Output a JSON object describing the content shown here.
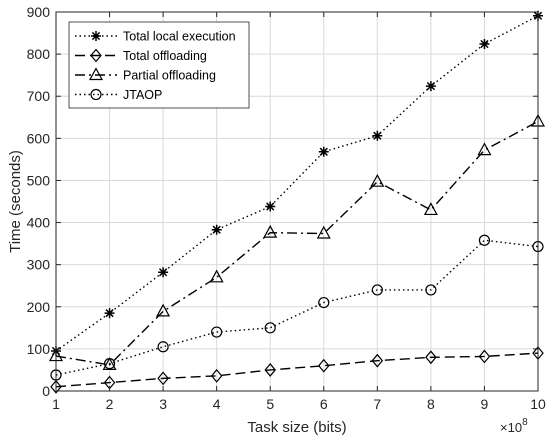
{
  "chart_data": {
    "type": "line",
    "xlabel": "Task size (bits)",
    "ylabel": "Time (seconds)",
    "x_multiplier": {
      "base": "×10",
      "exponent": "8"
    },
    "x": [
      1,
      2,
      3,
      4,
      5,
      6,
      7,
      8,
      9,
      10
    ],
    "xlim": [
      1,
      10
    ],
    "ylim": [
      0,
      900
    ],
    "x_ticks": [
      1,
      2,
      3,
      4,
      5,
      6,
      7,
      8,
      9,
      10
    ],
    "y_ticks": [
      0,
      100,
      200,
      300,
      400,
      500,
      600,
      700,
      800,
      900
    ],
    "grid": true,
    "legend_position": "top-left",
    "series": [
      {
        "name": "Total local execution",
        "marker": "asterisk",
        "line": "dotted",
        "color": "#000000",
        "values": [
          95,
          185,
          282,
          383,
          438,
          568,
          606,
          724,
          824,
          891
        ]
      },
      {
        "name": "Total offloading",
        "marker": "diamond",
        "line": "dashed",
        "color": "#000000",
        "values": [
          10,
          20,
          30,
          36,
          50,
          60,
          72,
          80,
          82,
          90
        ]
      },
      {
        "name": "Partial offloading",
        "marker": "triangle",
        "line": "dashdot",
        "color": "#000000",
        "values": [
          83,
          62,
          189,
          270,
          376,
          374,
          497,
          430,
          572,
          640
        ]
      },
      {
        "name": "JTAOP",
        "marker": "circle",
        "line": "dotted",
        "color": "#000000",
        "values": [
          38,
          65,
          105,
          140,
          150,
          210,
          240,
          240,
          358,
          343
        ]
      }
    ]
  }
}
